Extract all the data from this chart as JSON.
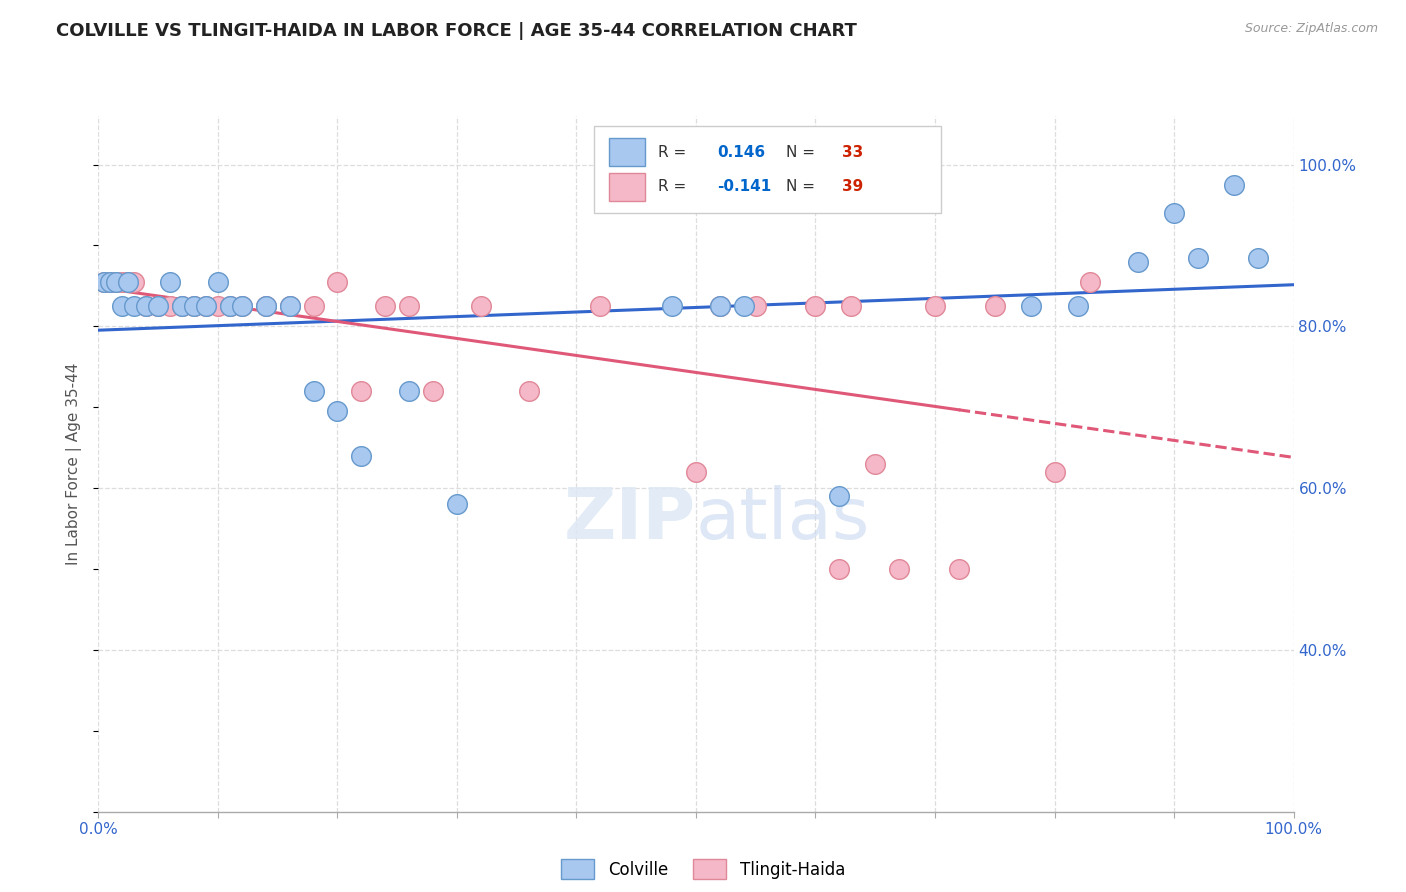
{
  "title": "COLVILLE VS TLINGIT-HAIDA IN LABOR FORCE | AGE 35-44 CORRELATION CHART",
  "source_text": "Source: ZipAtlas.com",
  "ylabel": "In Labor Force | Age 35-44",
  "xlim": [
    0.0,
    1.0
  ],
  "ylim": [
    0.2,
    1.06
  ],
  "x_ticks": [
    0.0,
    0.1,
    0.2,
    0.3,
    0.4,
    0.5,
    0.6,
    0.7,
    0.8,
    0.9,
    1.0
  ],
  "y_tick_values": [
    0.4,
    0.6,
    0.8,
    1.0
  ],
  "y_tick_labels": [
    "40.0%",
    "60.0%",
    "80.0%",
    "100.0%"
  ],
  "x_tick_labels": [
    "0.0%",
    "",
    "",
    "",
    "",
    "",
    "",
    "",
    "",
    "",
    "100.0%"
  ],
  "colville_r": 0.146,
  "colville_n": 33,
  "tlingit_r": -0.141,
  "tlingit_n": 39,
  "colville_color": "#a8c8f0",
  "tlingit_color": "#f5b8c8",
  "colville_edge_color": "#6699cc",
  "tlingit_edge_color": "#e08898",
  "colville_line_color": "#3366cc",
  "tlingit_line_color": "#e05878",
  "legend_r_color": "#0066cc",
  "legend_n_color": "#cc2200",
  "colville_x": [
    0.005,
    0.01,
    0.015,
    0.02,
    0.025,
    0.03,
    0.04,
    0.05,
    0.06,
    0.07,
    0.08,
    0.09,
    0.1,
    0.11,
    0.12,
    0.14,
    0.16,
    0.18,
    0.2,
    0.22,
    0.26,
    0.3,
    0.48,
    0.52,
    0.54,
    0.62,
    0.78,
    0.82,
    0.87,
    0.9,
    0.92,
    0.95,
    0.97
  ],
  "colville_y": [
    0.855,
    0.855,
    0.855,
    0.825,
    0.855,
    0.825,
    0.825,
    0.825,
    0.855,
    0.825,
    0.825,
    0.825,
    0.855,
    0.825,
    0.825,
    0.825,
    0.825,
    0.72,
    0.695,
    0.64,
    0.72,
    0.58,
    0.825,
    0.825,
    0.825,
    0.59,
    0.825,
    0.825,
    0.88,
    0.94,
    0.885,
    0.975,
    0.885
  ],
  "tlingit_x": [
    0.005,
    0.01,
    0.015,
    0.02,
    0.025,
    0.03,
    0.04,
    0.05,
    0.06,
    0.07,
    0.08,
    0.09,
    0.1,
    0.11,
    0.12,
    0.14,
    0.16,
    0.18,
    0.2,
    0.22,
    0.24,
    0.26,
    0.28,
    0.32,
    0.36,
    0.42,
    0.5,
    0.52,
    0.55,
    0.6,
    0.62,
    0.63,
    0.65,
    0.67,
    0.7,
    0.72,
    0.75,
    0.8,
    0.83
  ],
  "tlingit_y": [
    0.855,
    0.855,
    0.855,
    0.855,
    0.855,
    0.855,
    0.825,
    0.825,
    0.825,
    0.825,
    0.825,
    0.825,
    0.825,
    0.825,
    0.825,
    0.825,
    0.825,
    0.825,
    0.855,
    0.72,
    0.825,
    0.825,
    0.72,
    0.825,
    0.72,
    0.825,
    0.62,
    0.825,
    0.825,
    0.825,
    0.5,
    0.825,
    0.63,
    0.5,
    0.825,
    0.5,
    0.825,
    0.62,
    0.855
  ],
  "watermark_zip": "ZIP",
  "watermark_atlas": "atlas",
  "background_color": "#ffffff",
  "grid_color": "#dddddd",
  "grid_linestyle": "--"
}
